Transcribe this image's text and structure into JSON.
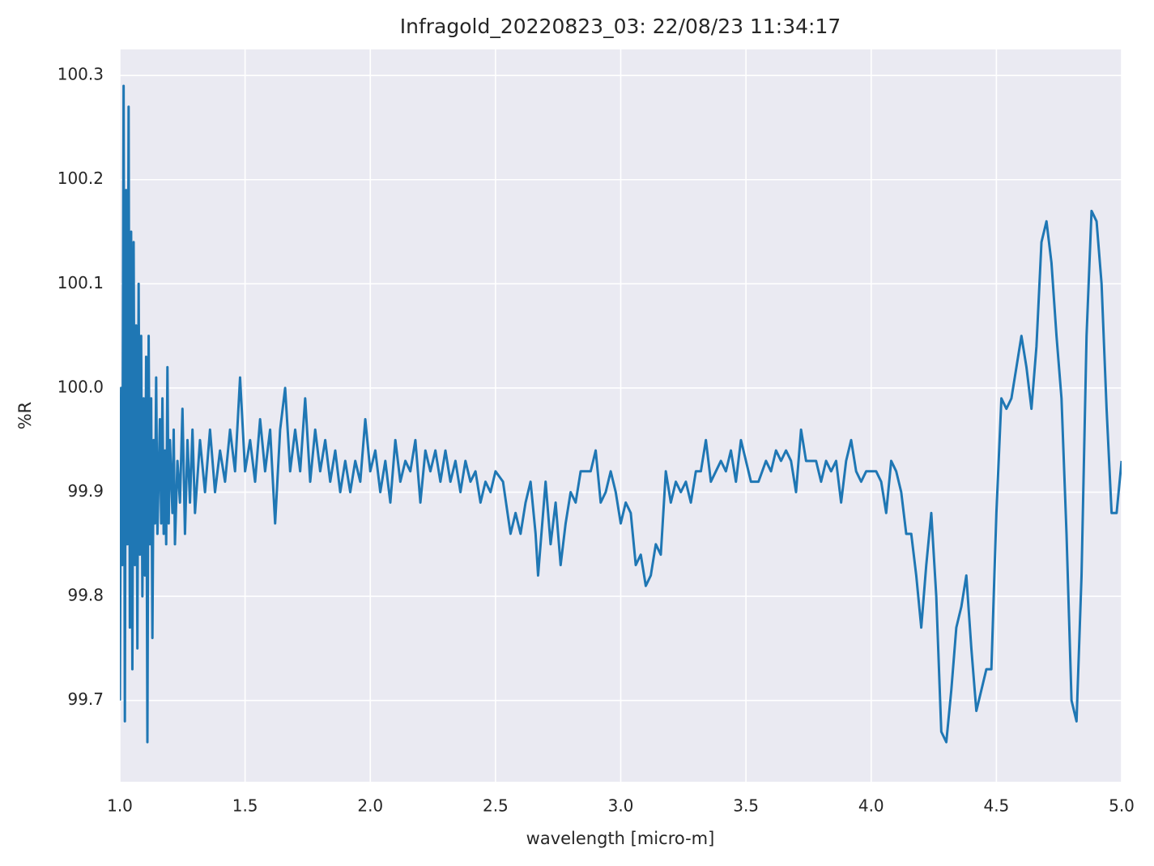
{
  "chart_data": {
    "type": "line",
    "title": "Infragold_20220823_03:  22/08/23 11:34:17",
    "xlabel": "wavelength [micro-m]",
    "ylabel": "%R",
    "color": "#1f77b4",
    "grid": true,
    "xlim": [
      1.0,
      5.0
    ],
    "ylim": [
      99.622,
      100.325
    ],
    "xticks": [
      {
        "value": 1,
        "label": "1.0"
      },
      1.5,
      {
        "value": 2,
        "label": "2.0"
      },
      2.5,
      {
        "value": 3,
        "label": "3.0"
      },
      3.5,
      {
        "value": 4,
        "label": "4.0"
      },
      4.5,
      {
        "value": 5,
        "label": "5.0"
      }
    ],
    "yticks": [
      99.7,
      99.8,
      99.9,
      {
        "value": 100,
        "label": "100.0"
      },
      100.1,
      100.2,
      100.3
    ],
    "x": [
      1.0,
      1.005,
      1.01,
      1.015,
      1.02,
      1.025,
      1.03,
      1.035,
      1.04,
      1.045,
      1.05,
      1.055,
      1.06,
      1.065,
      1.07,
      1.075,
      1.08,
      1.085,
      1.09,
      1.095,
      1.1,
      1.105,
      1.11,
      1.115,
      1.12,
      1.125,
      1.13,
      1.135,
      1.14,
      1.145,
      1.15,
      1.16,
      1.165,
      1.17,
      1.175,
      1.18,
      1.185,
      1.19,
      1.195,
      1.2,
      1.21,
      1.215,
      1.22,
      1.23,
      1.24,
      1.25,
      1.26,
      1.27,
      1.28,
      1.29,
      1.3,
      1.32,
      1.34,
      1.36,
      1.38,
      1.4,
      1.42,
      1.44,
      1.46,
      1.48,
      1.5,
      1.52,
      1.54,
      1.56,
      1.58,
      1.6,
      1.62,
      1.64,
      1.66,
      1.68,
      1.7,
      1.72,
      1.74,
      1.76,
      1.78,
      1.8,
      1.82,
      1.84,
      1.86,
      1.88,
      1.9,
      1.92,
      1.94,
      1.96,
      1.98,
      2.0,
      2.02,
      2.04,
      2.06,
      2.08,
      2.1,
      2.12,
      2.14,
      2.16,
      2.18,
      2.2,
      2.22,
      2.24,
      2.26,
      2.28,
      2.3,
      2.32,
      2.34,
      2.36,
      2.38,
      2.4,
      2.42,
      2.44,
      2.46,
      2.48,
      2.5,
      2.53,
      2.56,
      2.58,
      2.6,
      2.62,
      2.64,
      2.66,
      2.67,
      2.69,
      2.7,
      2.72,
      2.74,
      2.76,
      2.78,
      2.8,
      2.82,
      2.84,
      2.86,
      2.88,
      2.9,
      2.92,
      2.94,
      2.96,
      2.98,
      3.0,
      3.02,
      3.04,
      3.06,
      3.08,
      3.1,
      3.12,
      3.14,
      3.16,
      3.18,
      3.2,
      3.22,
      3.24,
      3.26,
      3.28,
      3.3,
      3.32,
      3.34,
      3.36,
      3.38,
      3.4,
      3.42,
      3.44,
      3.46,
      3.48,
      3.5,
      3.52,
      3.55,
      3.58,
      3.6,
      3.62,
      3.64,
      3.66,
      3.68,
      3.7,
      3.72,
      3.74,
      3.76,
      3.78,
      3.8,
      3.82,
      3.84,
      3.86,
      3.88,
      3.9,
      3.92,
      3.94,
      3.96,
      3.98,
      4.0,
      4.02,
      4.04,
      4.06,
      4.08,
      4.1,
      4.12,
      4.14,
      4.16,
      4.18,
      4.2,
      4.22,
      4.24,
      4.26,
      4.28,
      4.3,
      4.32,
      4.34,
      4.36,
      4.38,
      4.4,
      4.42,
      4.44,
      4.46,
      4.48,
      4.5,
      4.52,
      4.54,
      4.56,
      4.58,
      4.6,
      4.62,
      4.64,
      4.66,
      4.68,
      4.7,
      4.72,
      4.74,
      4.76,
      4.78,
      4.8,
      4.82,
      4.84,
      4.86,
      4.88,
      4.9,
      4.92,
      4.94,
      4.96,
      4.98,
      5.0
    ],
    "values": [
      99.7,
      100.0,
      99.83,
      100.29,
      99.68,
      100.19,
      99.85,
      100.27,
      99.77,
      100.15,
      99.73,
      100.14,
      99.83,
      100.06,
      99.75,
      100.1,
      99.84,
      100.05,
      99.8,
      99.99,
      99.82,
      100.03,
      99.66,
      100.05,
      99.85,
      99.99,
      99.76,
      99.95,
      99.87,
      100.01,
      99.86,
      99.97,
      99.87,
      99.99,
      99.86,
      99.94,
      99.85,
      100.02,
      99.87,
      99.95,
      99.88,
      99.96,
      99.85,
      99.93,
      99.89,
      99.98,
      99.86,
      99.95,
      99.89,
      99.96,
      99.88,
      99.95,
      99.9,
      99.96,
      99.9,
      99.94,
      99.91,
      99.96,
      99.92,
      100.01,
      99.92,
      99.95,
      99.91,
      99.97,
      99.92,
      99.96,
      99.87,
      99.96,
      100.0,
      99.92,
      99.96,
      99.92,
      99.99,
      99.91,
      99.96,
      99.92,
      99.95,
      99.91,
      99.94,
      99.9,
      99.93,
      99.9,
      99.93,
      99.91,
      99.97,
      99.92,
      99.94,
      99.9,
      99.93,
      99.89,
      99.95,
      99.91,
      99.93,
      99.92,
      99.95,
      99.89,
      99.94,
      99.92,
      99.94,
      99.91,
      99.94,
      99.91,
      99.93,
      99.9,
      99.93,
      99.91,
      99.92,
      99.89,
      99.91,
      99.9,
      99.92,
      99.91,
      99.86,
      99.88,
      99.86,
      99.89,
      99.91,
      99.86,
      99.82,
      99.88,
      99.91,
      99.85,
      99.89,
      99.83,
      99.87,
      99.9,
      99.89,
      99.92,
      99.92,
      99.92,
      99.94,
      99.89,
      99.9,
      99.92,
      99.9,
      99.87,
      99.89,
      99.88,
      99.83,
      99.84,
      99.81,
      99.82,
      99.85,
      99.84,
      99.92,
      99.89,
      99.91,
      99.9,
      99.91,
      99.89,
      99.92,
      99.92,
      99.95,
      99.91,
      99.92,
      99.93,
      99.92,
      99.94,
      99.91,
      99.95,
      99.93,
      99.91,
      99.91,
      99.93,
      99.92,
      99.94,
      99.93,
      99.94,
      99.93,
      99.9,
      99.96,
      99.93,
      99.93,
      99.93,
      99.91,
      99.93,
      99.92,
      99.93,
      99.89,
      99.93,
      99.95,
      99.92,
      99.91,
      99.92,
      99.92,
      99.92,
      99.91,
      99.88,
      99.93,
      99.92,
      99.9,
      99.86,
      99.86,
      99.82,
      99.77,
      99.83,
      99.88,
      99.8,
      99.67,
      99.66,
      99.71,
      99.77,
      99.79,
      99.82,
      99.75,
      99.69,
      99.71,
      99.73,
      99.73,
      99.88,
      99.99,
      99.98,
      99.99,
      100.02,
      100.05,
      100.02,
      99.98,
      100.04,
      100.14,
      100.16,
      100.12,
      100.05,
      99.99,
      99.86,
      99.7,
      99.68,
      99.82,
      100.05,
      100.17,
      100.16,
      100.1,
      99.98,
      99.88,
      99.88,
      99.93
    ]
  }
}
